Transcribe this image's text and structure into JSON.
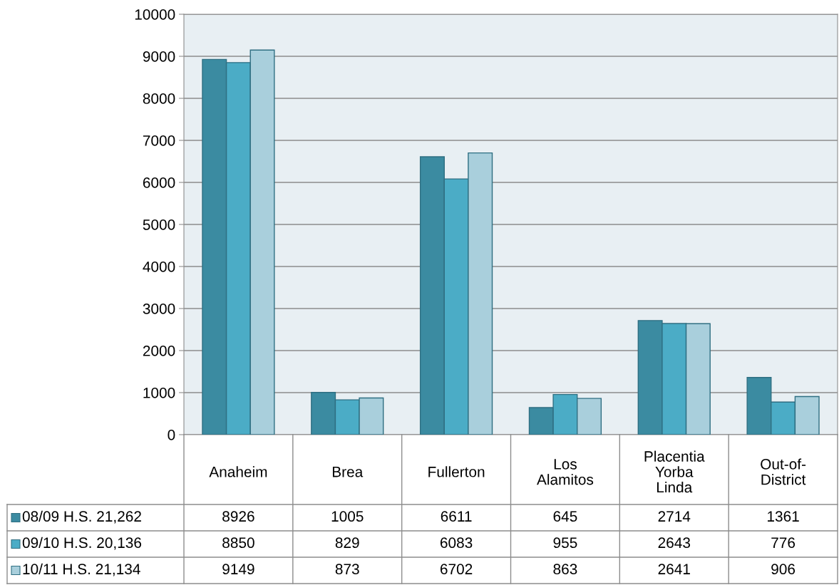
{
  "chart_data": {
    "type": "bar",
    "categories": [
      "Anaheim",
      "Brea",
      "Fullerton",
      "Los\nAlamitos",
      "Placentia\nYorba\nLinda",
      "Out-of-\nDistrict"
    ],
    "series": [
      {
        "name": "08/09 H.S. 21,262",
        "color": "#3b8ba1",
        "values": [
          8926,
          1005,
          6611,
          645,
          2714,
          1361
        ]
      },
      {
        "name": "09/10 H.S. 20,136",
        "color": "#4bacc6",
        "values": [
          8850,
          829,
          6083,
          955,
          2643,
          776
        ]
      },
      {
        "name": "10/11 H.S. 21,134",
        "color": "#a9cfdc",
        "values": [
          9149,
          873,
          6702,
          863,
          2641,
          906
        ]
      }
    ],
    "ylim": [
      0,
      10000
    ],
    "yticks": [
      0,
      1000,
      2000,
      3000,
      4000,
      5000,
      6000,
      7000,
      8000,
      9000,
      10000
    ],
    "grid": "y",
    "legend": "bottom left",
    "data_labels": true
  }
}
